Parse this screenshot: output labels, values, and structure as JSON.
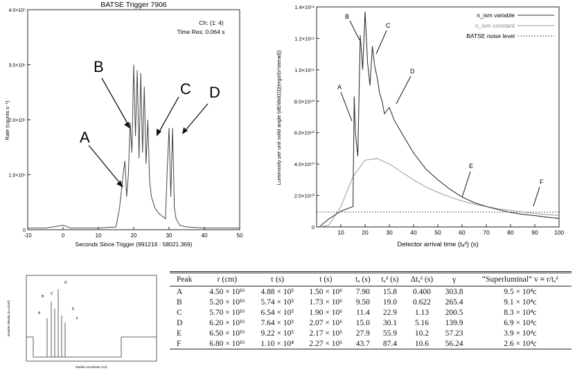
{
  "left_chart": {
    "title": "BATSE Trigger 7906",
    "ch_label": "Ch: (1: 4)",
    "timeres_label": "Time Res: 0.064 s",
    "ylabel": "Rate (counts s⁻¹)",
    "xlabel": "Seconds Since Trigger (991216 : 58021.369)",
    "xticks": [
      "-10",
      "0",
      "10",
      "20",
      "30",
      "40",
      "50"
    ],
    "yticks": [
      "0",
      "1.0×10⁵",
      "2.0×10⁵",
      "3.0×10⁵",
      "4.0×10⁵"
    ],
    "peak_labels": [
      "A",
      "B",
      "C",
      "D"
    ]
  },
  "right_chart": {
    "ylabel": "Luminosity per unit solid angle (dE/dtd(Ω))(ergs/(s*sterad))",
    "xlabel": "Detector arrival time (tₐᵈ) (s)",
    "xticks": [
      "10",
      "20",
      "30",
      "40",
      "50",
      "60",
      "70",
      "80",
      "90",
      "100"
    ],
    "yticks": [
      "0",
      "2.0×10⁵⁰",
      "4.0×10⁵⁰",
      "6.0×10⁵⁰",
      "8.0×10⁵⁰",
      "1.0×10⁵¹",
      "1.2×10⁵¹",
      "1.4×10⁵¹"
    ],
    "legend": [
      "n_ism variable",
      "n_ism constant",
      "BATSE noise level"
    ],
    "peak_labels": [
      "A",
      "B",
      "C",
      "D",
      "E",
      "F"
    ]
  },
  "mini_chart": {
    "ylabel": "Number density (nᵢₛₘ/cm³)",
    "xlabel": "Radial coordinate (cm)",
    "peak_labels": [
      "A",
      "B",
      "C",
      "D",
      "E",
      "F"
    ]
  },
  "table": {
    "headers": [
      "Peak",
      "r (cm)",
      "τ (s)",
      "t (s)",
      "tₐ (s)",
      "tₐᵈ (s)",
      "Δtₐᵈ (s)",
      "γ",
      "“Superluminal” v ≡ r/tₐᵈ"
    ],
    "rows": [
      [
        "A",
        "4.50 × 10¹⁶",
        "4.88 × 10³",
        "1.50 × 10⁶",
        "7.90",
        "15.8",
        "0.400",
        "303.8",
        "9.5 × 10⁴c"
      ],
      [
        "B",
        "5.20 × 10¹⁶",
        "5.74 × 10³",
        "1.73 × 10⁶",
        "9.50",
        "19.0",
        "0.622",
        "265.4",
        "9.1 × 10⁴c"
      ],
      [
        "C",
        "5.70 × 10¹⁶",
        "6.54 × 10³",
        "1.90 × 10⁶",
        "11.4",
        "22.9",
        "1.13",
        "200.5",
        "8.3 × 10⁴c"
      ],
      [
        "D",
        "6.20 × 10¹⁶",
        "7.64 × 10³",
        "2.07 × 10⁶",
        "15.0",
        "30.1",
        "5.16",
        "139.9",
        "6.9 × 10⁴c"
      ],
      [
        "E",
        "6.50 × 10¹⁶",
        "9.22 × 10³",
        "2.17 × 10⁶",
        "27.9",
        "55.9",
        "10.2",
        "57.23",
        "3.9 × 10⁴c"
      ],
      [
        "F",
        "6.80 × 10¹⁶",
        "1.10 × 10⁴",
        "2.27 × 10⁶",
        "43.7",
        "87.4",
        "10.6",
        "56.24",
        "2.6 × 10⁴c"
      ]
    ]
  },
  "chart_data": [
    {
      "type": "line",
      "title": "BATSE Trigger 7906",
      "xlabel": "Seconds Since Trigger (991216 : 58021.369)",
      "ylabel": "Rate (counts s⁻¹)",
      "xlim": [
        -10,
        50
      ],
      "ylim": [
        0,
        400000
      ],
      "series": [
        {
          "x": [
            -10,
            -5,
            0,
            1,
            2,
            5,
            10,
            15,
            16,
            17,
            17.5,
            18,
            18.5,
            19,
            19.5,
            20,
            20.5,
            21,
            21.5,
            22,
            22.5,
            23,
            23.5,
            24,
            24.5,
            25,
            26,
            27,
            28,
            29,
            29.5,
            30,
            30.5,
            31,
            31.5,
            32,
            33,
            35,
            40,
            45,
            50
          ],
          "y": [
            3000,
            3000,
            8000,
            6000,
            3000,
            3000,
            3000,
            5000,
            40000,
            100000,
            125000,
            60000,
            100000,
            195000,
            140000,
            300000,
            170000,
            290000,
            130000,
            285000,
            140000,
            260000,
            120000,
            200000,
            90000,
            60000,
            40000,
            30000,
            25000,
            20000,
            110000,
            185000,
            60000,
            185000,
            40000,
            20000,
            8000,
            5000,
            3000,
            3000,
            3000
          ]
        }
      ]
    },
    {
      "type": "line",
      "xlabel": "Detector arrival time (tₐᵈ) (s)",
      "xlim": [
        0,
        100
      ],
      "ylim": [
        0,
        1.4e+51
      ],
      "series": [
        {
          "name": "n_ism variable",
          "x": [
            1,
            5,
            10,
            15,
            15.5,
            16,
            17,
            18,
            19,
            20,
            21,
            22,
            23,
            24,
            25,
            26,
            27,
            28,
            30,
            32,
            35,
            40,
            45,
            50,
            55,
            60,
            65,
            70,
            75,
            80,
            85,
            90,
            95,
            100
          ],
          "y": [
            0,
            5e+49,
            1e+50,
            1.3e+50,
            8.3e+50,
            6e+50,
            4.5e+50,
            1.22e+51,
            1e+51,
            1.37e+51,
            1.05e+51,
            9e+50,
            1.15e+51,
            1.02e+51,
            9.5e+50,
            8.5e+50,
            8e+50,
            7.2e+50,
            7.6e+50,
            6.8e+50,
            6e+50,
            4.7e+50,
            3.7e+50,
            3e+50,
            2.4e+50,
            1.9e+50,
            1.55e+50,
            1.3e+50,
            1.1e+50,
            9.2e+49,
            8e+49,
            7.2e+49,
            6.2e+49,
            5.4e+49
          ]
        },
        {
          "name": "n_ism constant",
          "x": [
            1,
            5,
            10,
            15,
            20,
            25,
            30,
            35,
            40,
            45,
            50,
            55,
            60,
            65,
            70,
            75,
            80,
            85,
            90,
            95,
            100
          ],
          "y": [
            0,
            1e+49,
            1.3e+50,
            3.2e+50,
            4.25e+50,
            4.35e+50,
            4e+50,
            3.5e+50,
            3e+50,
            2.55e+50,
            2.2e+50,
            1.9e+50,
            1.65e+50,
            1.45e+50,
            1.3e+50,
            1.15e+50,
            1.05e+50,
            9.5e+49,
            8.6e+49,
            7.9e+49,
            7.3e+49
          ]
        },
        {
          "name": "BATSE noise level",
          "x": [
            0,
            100
          ],
          "y": [
            9.5e+49,
            9.5e+49
          ]
        }
      ]
    }
  ]
}
